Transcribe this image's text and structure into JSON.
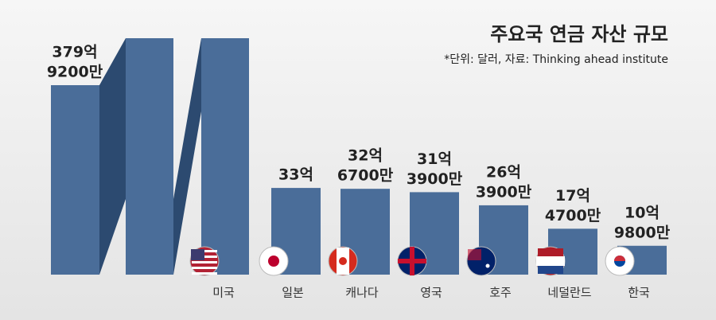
{
  "chart_data": {
    "type": "bar",
    "title": "주요국 연금 자산 규모",
    "subtitle": "*단위: 달러, 자료: Thinking ahead institute",
    "categories": [
      "미국",
      "일본",
      "캐나다",
      "영국",
      "호주",
      "네덜란드",
      "한국"
    ],
    "values": [
      379.92,
      33,
      32.67,
      31.39,
      26.39,
      17.47,
      10.98
    ],
    "value_labels": [
      [
        "379억",
        "9200만"
      ],
      [
        "33억"
      ],
      [
        "32억",
        "6700만"
      ],
      [
        "31억",
        "3900만"
      ],
      [
        "26억",
        "3900만"
      ],
      [
        "17억",
        "4700만"
      ],
      [
        "10억",
        "9800만"
      ]
    ],
    "color": "#4a6d99"
  }
}
